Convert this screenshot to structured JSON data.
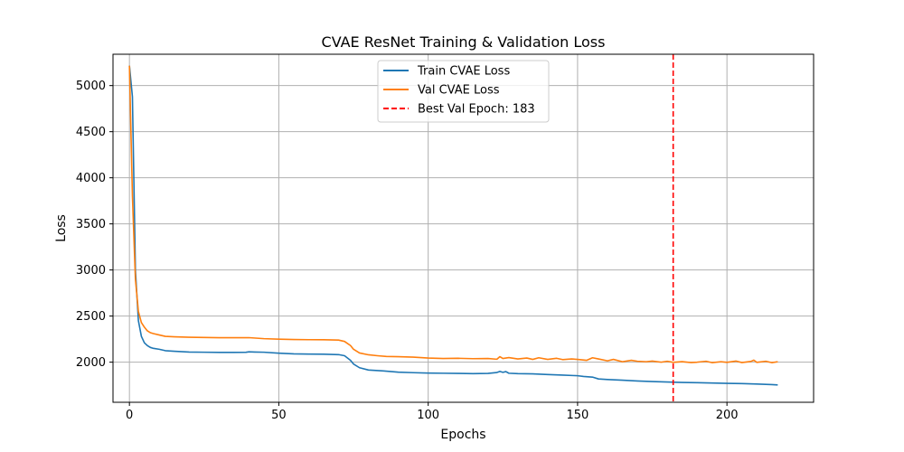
{
  "chart_data": {
    "type": "line",
    "title": "CVAE ResNet Training & Validation Loss",
    "xlabel": "Epochs",
    "ylabel": "Loss",
    "xlim": [
      -5.5,
      229
    ],
    "ylim": [
      1565,
      5340
    ],
    "xticks": [
      0,
      50,
      100,
      150,
      200
    ],
    "yticks": [
      2000,
      2500,
      3000,
      3500,
      4000,
      4500,
      5000
    ],
    "grid": true,
    "legend_position": "upper center",
    "series": [
      {
        "name": "Train CVAE Loss",
        "color": "#1f77b4",
        "x": [
          0,
          1,
          2,
          3,
          4,
          5,
          6,
          7,
          8,
          10,
          12,
          15,
          20,
          25,
          30,
          35,
          39,
          40,
          42,
          45,
          50,
          55,
          60,
          65,
          70,
          72,
          74,
          75,
          77,
          80,
          85,
          90,
          95,
          100,
          105,
          110,
          115,
          120,
          123,
          124,
          125,
          126,
          127,
          130,
          135,
          140,
          145,
          150,
          152,
          155,
          157,
          160,
          165,
          170,
          175,
          180,
          185,
          190,
          195,
          200,
          205,
          210,
          215,
          217
        ],
        "y": [
          5215,
          4880,
          3000,
          2450,
          2280,
          2210,
          2180,
          2160,
          2150,
          2140,
          2125,
          2118,
          2110,
          2108,
          2106,
          2106,
          2107,
          2112,
          2110,
          2108,
          2098,
          2090,
          2088,
          2086,
          2082,
          2070,
          2020,
          1980,
          1940,
          1915,
          1905,
          1892,
          1886,
          1882,
          1880,
          1878,
          1876,
          1878,
          1888,
          1900,
          1890,
          1898,
          1880,
          1876,
          1873,
          1866,
          1860,
          1853,
          1845,
          1838,
          1818,
          1812,
          1805,
          1796,
          1790,
          1785,
          1780,
          1778,
          1774,
          1770,
          1768,
          1763,
          1757,
          1753
        ]
      },
      {
        "name": "Val CVAE Loss",
        "color": "#ff7f0e",
        "x": [
          0,
          1,
          2,
          3,
          4,
          5,
          6,
          7,
          8,
          10,
          12,
          15,
          20,
          25,
          30,
          35,
          40,
          45,
          50,
          55,
          60,
          65,
          70,
          72,
          74,
          75,
          77,
          80,
          83,
          86,
          90,
          95,
          100,
          105,
          110,
          115,
          120,
          123,
          124,
          125,
          127,
          130,
          133,
          135,
          137,
          140,
          143,
          145,
          148,
          150,
          153,
          155,
          157,
          160,
          162,
          165,
          168,
          170,
          173,
          175,
          178,
          180,
          182,
          185,
          188,
          190,
          193,
          195,
          198,
          200,
          203,
          205,
          208,
          209,
          210,
          213,
          215,
          217
        ],
        "y": [
          5215,
          3800,
          2900,
          2550,
          2430,
          2380,
          2340,
          2320,
          2310,
          2295,
          2280,
          2275,
          2270,
          2268,
          2265,
          2265,
          2266,
          2255,
          2250,
          2246,
          2244,
          2243,
          2240,
          2225,
          2180,
          2140,
          2100,
          2080,
          2070,
          2062,
          2060,
          2055,
          2045,
          2040,
          2042,
          2038,
          2040,
          2032,
          2060,
          2040,
          2050,
          2035,
          2045,
          2030,
          2048,
          2030,
          2042,
          2028,
          2035,
          2030,
          2020,
          2048,
          2035,
          2015,
          2030,
          2005,
          2020,
          2010,
          2005,
          2012,
          2000,
          2010,
          1998,
          2006,
          1996,
          2000,
          2010,
          1995,
          2005,
          1998,
          2012,
          1996,
          2008,
          2022,
          1998,
          2010,
          1995,
          2005
        ]
      }
    ],
    "reference_line": {
      "orientation": "vertical",
      "x": 182,
      "label": "Best Val Epoch: 183",
      "color": "#ff0000",
      "style": "dashed"
    }
  }
}
